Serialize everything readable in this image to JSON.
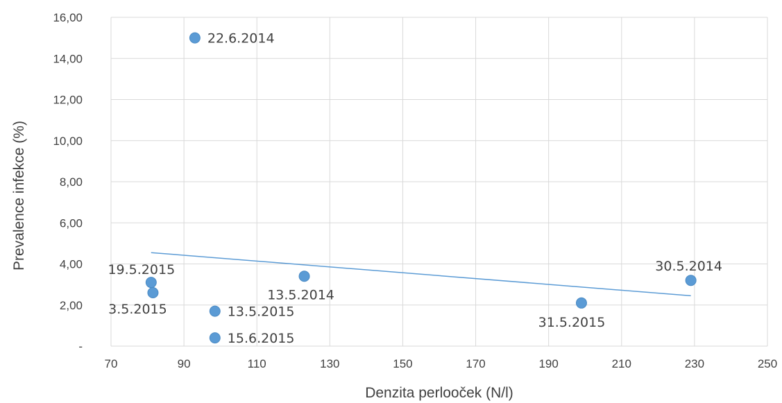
{
  "chart_data": {
    "type": "scatter",
    "title": "",
    "xlabel": "Denzita perlooček (N/l)",
    "ylabel": "Prevalence infekce (%)",
    "xlim": [
      70,
      250
    ],
    "ylim": [
      0,
      16
    ],
    "x_ticks": [
      "70",
      "90",
      "110",
      "130",
      "150",
      "170",
      "190",
      "210",
      "230",
      "250"
    ],
    "y_ticks": [
      "-",
      "2,00",
      "4,00",
      "6,00",
      "8,00",
      "10,00",
      "12,00",
      "14,00",
      "16,00"
    ],
    "grid": true,
    "marker_color": "#5b9bd5",
    "trendline_color": "#5b9bd5",
    "points": [
      {
        "x": 93,
        "y": 15.0,
        "label": "22.6.2014"
      },
      {
        "x": 81,
        "y": 3.1,
        "label": "19.5.2015"
      },
      {
        "x": 81.5,
        "y": 2.6,
        "label": "3.5.2015"
      },
      {
        "x": 98.5,
        "y": 1.7,
        "label": "13.5.2015"
      },
      {
        "x": 98.5,
        "y": 0.4,
        "label": "15.6.2015"
      },
      {
        "x": 123,
        "y": 3.4,
        "label": "13.5.2014"
      },
      {
        "x": 199,
        "y": 2.1,
        "label": "31.5.2015"
      },
      {
        "x": 229,
        "y": 3.2,
        "label": "30.5.2014"
      }
    ],
    "trendline": {
      "type": "linear",
      "x": [
        81,
        229
      ],
      "y": [
        4.55,
        2.45
      ]
    }
  }
}
